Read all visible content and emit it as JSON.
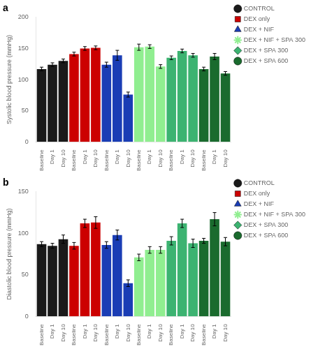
{
  "chart_data": [
    {
      "type": "bar",
      "title": "a",
      "y_label": "Systolic blood pressure (mmHg)",
      "categories": [
        "Baseline",
        "Day 1",
        "Day 10",
        "Baseline",
        "Day 1",
        "Day 10",
        "Baseline",
        "Day 1",
        "Day 10",
        "Baseline",
        "Day 1",
        "Day 10",
        "Baseline",
        "Day 1",
        "Day 10",
        "Baseline",
        "Day 1",
        "Day 10"
      ],
      "series": [
        {
          "name": "CONTROL",
          "color": "#1a1a1a",
          "marker": "circle",
          "values": [
            117,
            124,
            130,
            null,
            null,
            null,
            null,
            null,
            null,
            null,
            null,
            null,
            null,
            null,
            null,
            null,
            null,
            null
          ],
          "errors": [
            3,
            3,
            3,
            null,
            null,
            null,
            null,
            null,
            null,
            null,
            null,
            null,
            null,
            null,
            null,
            null,
            null,
            null
          ]
        },
        {
          "name": "DEX only",
          "color": "#cc0000",
          "marker": "square",
          "values": [
            null,
            null,
            null,
            141,
            150,
            151,
            null,
            null,
            null,
            null,
            null,
            null,
            null,
            null,
            null,
            null,
            null,
            null
          ],
          "errors": [
            null,
            null,
            null,
            3,
            3,
            3,
            null,
            null,
            null,
            null,
            null,
            null,
            null,
            null,
            null,
            null,
            null,
            null
          ]
        },
        {
          "name": "DEX + NIF",
          "color": "#1a3db5",
          "marker": "triangle",
          "values": [
            null,
            null,
            null,
            null,
            null,
            null,
            124,
            139,
            76,
            null,
            null,
            null,
            null,
            null,
            null,
            null,
            null,
            null
          ],
          "errors": [
            null,
            null,
            null,
            null,
            null,
            null,
            4,
            8,
            4,
            null,
            null,
            null,
            null,
            null,
            null,
            null,
            null,
            null
          ]
        },
        {
          "name": "DEX + NIF + SPA 300",
          "color": "#90ee90",
          "marker": "star",
          "values": [
            null,
            null,
            null,
            null,
            null,
            null,
            null,
            null,
            null,
            152,
            153,
            121,
            null,
            null,
            null,
            null,
            null,
            null
          ],
          "errors": [
            null,
            null,
            null,
            null,
            null,
            null,
            null,
            null,
            null,
            5,
            3,
            3,
            null,
            null,
            null,
            null,
            null,
            null
          ]
        },
        {
          "name": "DEX + SPA 300",
          "color": "#3cb371",
          "marker": "diamond",
          "values": [
            null,
            null,
            null,
            null,
            null,
            null,
            null,
            null,
            null,
            null,
            null,
            null,
            135,
            146,
            139,
            null,
            null,
            null
          ],
          "errors": [
            null,
            null,
            null,
            null,
            null,
            null,
            null,
            null,
            null,
            null,
            null,
            null,
            3,
            3,
            3,
            null,
            null,
            null
          ]
        },
        {
          "name": "DEX + SPA 600",
          "color": "#1a6b2e",
          "marker": "circle",
          "values": [
            null,
            null,
            null,
            null,
            null,
            null,
            null,
            null,
            null,
            null,
            null,
            null,
            null,
            null,
            null,
            117,
            137,
            110
          ],
          "errors": [
            null,
            null,
            null,
            null,
            null,
            null,
            null,
            null,
            null,
            null,
            null,
            null,
            null,
            null,
            null,
            3,
            5,
            3
          ]
        }
      ],
      "ylim": [
        0,
        200
      ],
      "yticks": [
        0,
        50,
        100,
        150,
        200
      ],
      "grid": false,
      "legend": "right"
    },
    {
      "type": "bar",
      "title": "b",
      "y_label": "Diastolic blood pressure (mmHg)",
      "categories": [
        "Baseline",
        "Day 1",
        "Day 10",
        "Baseline",
        "Day 1",
        "Day 10",
        "Baseline",
        "Day 1",
        "Day 10",
        "Baseline",
        "Day 1",
        "Day 10",
        "Baseline",
        "Day 1",
        "Day 10",
        "Baseline",
        "Day 1",
        "Day 10"
      ],
      "series": [
        {
          "name": "CONTROL",
          "color": "#1a1a1a",
          "marker": "circle",
          "values": [
            87,
            85,
            93,
            null,
            null,
            null,
            null,
            null,
            null,
            null,
            null,
            null,
            null,
            null,
            null,
            null,
            null,
            null
          ],
          "errors": [
            3,
            3,
            5,
            null,
            null,
            null,
            null,
            null,
            null,
            null,
            null,
            null,
            null,
            null,
            null,
            null,
            null,
            null
          ]
        },
        {
          "name": "DEX only",
          "color": "#cc0000",
          "marker": "square",
          "values": [
            null,
            null,
            null,
            85,
            112,
            113,
            null,
            null,
            null,
            null,
            null,
            null,
            null,
            null,
            null,
            null,
            null,
            null
          ],
          "errors": [
            null,
            null,
            null,
            4,
            5,
            7,
            null,
            null,
            null,
            null,
            null,
            null,
            null,
            null,
            null,
            null,
            null,
            null
          ]
        },
        {
          "name": "DEX + NIF",
          "color": "#1a3db5",
          "marker": "triangle",
          "values": [
            null,
            null,
            null,
            null,
            null,
            null,
            86,
            98,
            40,
            null,
            null,
            null,
            null,
            null,
            null,
            null,
            null,
            null
          ],
          "errors": [
            null,
            null,
            null,
            null,
            null,
            null,
            4,
            6,
            4,
            null,
            null,
            null,
            null,
            null,
            null,
            null,
            null,
            null
          ]
        },
        {
          "name": "DEX + NIF + SPA 300",
          "color": "#90ee90",
          "marker": "star",
          "values": [
            null,
            null,
            null,
            null,
            null,
            null,
            null,
            null,
            null,
            71,
            80,
            80,
            null,
            null,
            null,
            null,
            null,
            null
          ],
          "errors": [
            null,
            null,
            null,
            null,
            null,
            null,
            null,
            null,
            null,
            4,
            4,
            4,
            null,
            null,
            null,
            null,
            null,
            null
          ]
        },
        {
          "name": "DEX + SPA 300",
          "color": "#3cb371",
          "marker": "diamond",
          "values": [
            null,
            null,
            null,
            null,
            null,
            null,
            null,
            null,
            null,
            null,
            null,
            null,
            91,
            112,
            88,
            null,
            null,
            null
          ],
          "errors": [
            null,
            null,
            null,
            null,
            null,
            null,
            null,
            null,
            null,
            null,
            null,
            null,
            5,
            5,
            5,
            null,
            null,
            null
          ]
        },
        {
          "name": "DEX + SPA 600",
          "color": "#1a6b2e",
          "marker": "circle",
          "values": [
            null,
            null,
            null,
            null,
            null,
            null,
            null,
            null,
            null,
            null,
            null,
            null,
            null,
            null,
            null,
            91,
            117,
            90
          ],
          "errors": [
            null,
            null,
            null,
            null,
            null,
            null,
            null,
            null,
            null,
            null,
            null,
            null,
            null,
            null,
            null,
            3,
            8,
            5
          ]
        }
      ],
      "ylim": [
        0,
        150
      ],
      "yticks": [
        0,
        50,
        100,
        150
      ],
      "grid": false,
      "legend": "right"
    }
  ]
}
